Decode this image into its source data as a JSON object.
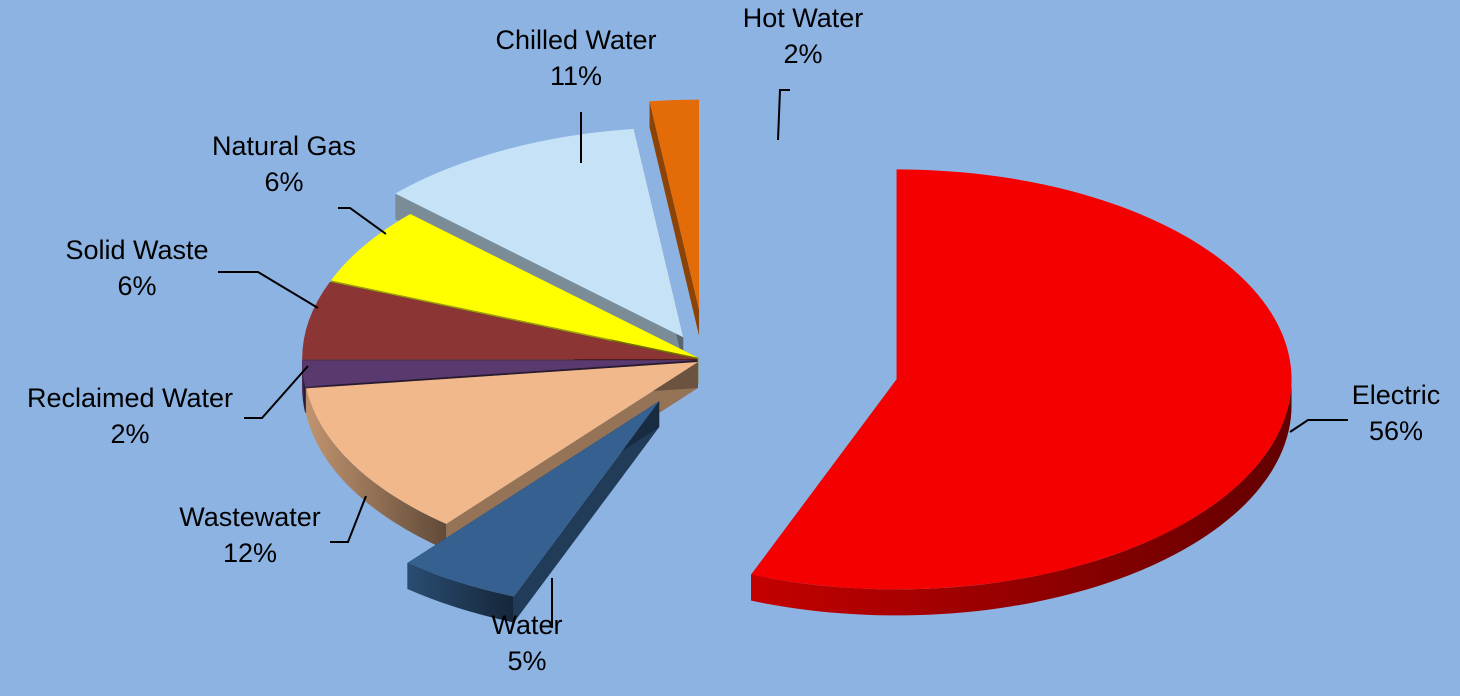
{
  "chart_data": {
    "type": "pie",
    "style": "3d-exploded",
    "slices": [
      {
        "label": "Electric",
        "percent_label": "56%",
        "value": 56,
        "color": "#f50000"
      },
      {
        "label": "Water",
        "percent_label": "5%",
        "value": 5,
        "color": "#35608f"
      },
      {
        "label": "Wastewater",
        "percent_label": "12%",
        "value": 12,
        "color": "#f1b98b"
      },
      {
        "label": "Reclaimed Water",
        "percent_label": "2%",
        "value": 2,
        "color": "#5a3a6e"
      },
      {
        "label": "Solid Waste",
        "percent_label": "6%",
        "value": 6,
        "color": "#8c3535"
      },
      {
        "label": "Natural Gas",
        "percent_label": "6%",
        "value": 6,
        "color": "#ffff00"
      },
      {
        "label": "Chilled Water",
        "percent_label": "11%",
        "value": 11,
        "color": "#c6e2f6"
      },
      {
        "label": "Hot Water",
        "percent_label": "2%",
        "value": 2,
        "color": "#e36c09"
      }
    ],
    "background": "#8db3e2",
    "legend": "none"
  }
}
